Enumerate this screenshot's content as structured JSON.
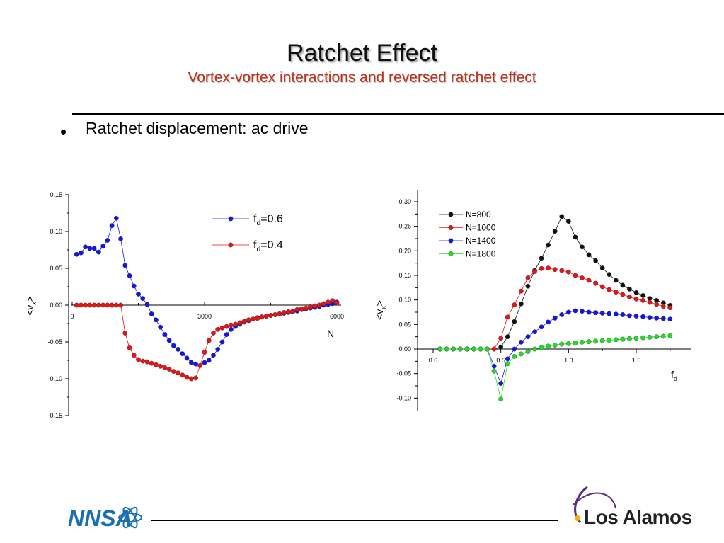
{
  "slide": {
    "title": "Ratchet Effect",
    "subtitle": "Vortex-vortex interactions and reversed ratchet effect",
    "bullet": "Ratchet displacement: ac drive"
  },
  "logos": {
    "left": "NNSA",
    "right": "Los Alamos"
  },
  "colors": {
    "title_text": "#111111",
    "subtitle_text": "#c0301a",
    "blue": "#1414e6",
    "red": "#e61414",
    "black": "#111111",
    "green": "#22dd22"
  },
  "chart_data": [
    {
      "type": "line",
      "xlabel": "N",
      "ylabel": "<v_x>",
      "xlim": [
        0,
        6000
      ],
      "ylim": [
        -0.15,
        0.15
      ],
      "xticks": [
        0,
        3000,
        6000
      ],
      "yticks": [
        0.15,
        0.1,
        0.05,
        0.0,
        -0.05,
        -0.1,
        -0.15
      ],
      "ytick_labels": [
        "0.15",
        "0.10",
        "0.05",
        "0.00",
        "-0.05",
        "-0.10",
        "-0.15"
      ],
      "legend_position": "top-right",
      "series": [
        {
          "name": "f_d=0.6",
          "name_main": "f",
          "name_sub": "d",
          "name_suffix": "=0.6",
          "color": "#1414e6",
          "x": [
            100,
            200,
            300,
            400,
            500,
            600,
            700,
            800,
            900,
            1000,
            1100,
            1200,
            1300,
            1400,
            1500,
            1600,
            1700,
            1800,
            1900,
            2000,
            2100,
            2200,
            2300,
            2400,
            2500,
            2600,
            2700,
            2800,
            2900,
            3000,
            3100,
            3200,
            3300,
            3400,
            3500,
            3600,
            3700,
            3800,
            3900,
            4000,
            4100,
            4200,
            4300,
            4400,
            4500,
            4600,
            4700,
            4800,
            4900,
            5000,
            5100,
            5200,
            5300,
            5400,
            5500,
            5600,
            5700,
            5800,
            5900,
            6000
          ],
          "y": [
            0.069,
            0.071,
            0.079,
            0.077,
            0.077,
            0.072,
            0.08,
            0.088,
            0.108,
            0.118,
            0.09,
            0.054,
            0.04,
            0.026,
            0.015,
            0.009,
            0.001,
            -0.012,
            -0.02,
            -0.03,
            -0.04,
            -0.048,
            -0.055,
            -0.06,
            -0.066,
            -0.072,
            -0.078,
            -0.08,
            -0.082,
            -0.078,
            -0.075,
            -0.068,
            -0.06,
            -0.05,
            -0.04,
            -0.033,
            -0.029,
            -0.026,
            -0.023,
            -0.021,
            -0.019,
            -0.017,
            -0.016,
            -0.015,
            -0.014,
            -0.013,
            -0.012,
            -0.011,
            -0.01,
            -0.009,
            -0.008,
            -0.006,
            -0.005,
            -0.004,
            -0.003,
            -0.002,
            0.0,
            0.001,
            0.002,
            0.004
          ]
        },
        {
          "name": "f_d=0.4",
          "name_main": "f",
          "name_sub": "d",
          "name_suffix": "=0.4",
          "color": "#e61414",
          "x": [
            100,
            200,
            300,
            400,
            500,
            600,
            700,
            800,
            900,
            1000,
            1100,
            1200,
            1300,
            1400,
            1500,
            1600,
            1700,
            1800,
            1900,
            2000,
            2100,
            2200,
            2300,
            2400,
            2500,
            2600,
            2700,
            2800,
            2900,
            3000,
            3100,
            3200,
            3300,
            3400,
            3500,
            3600,
            3700,
            3800,
            3900,
            4000,
            4100,
            4200,
            4300,
            4400,
            4500,
            4600,
            4700,
            4800,
            4900,
            5000,
            5100,
            5200,
            5300,
            5400,
            5500,
            5600,
            5700,
            5800,
            5900,
            6000
          ],
          "y": [
            0,
            0,
            0,
            0,
            0,
            0,
            0,
            0,
            0,
            0,
            0,
            -0.038,
            -0.058,
            -0.068,
            -0.074,
            -0.076,
            -0.077,
            -0.079,
            -0.081,
            -0.083,
            -0.085,
            -0.087,
            -0.09,
            -0.092,
            -0.095,
            -0.098,
            -0.1,
            -0.099,
            -0.082,
            -0.064,
            -0.048,
            -0.038,
            -0.033,
            -0.031,
            -0.029,
            -0.027,
            -0.026,
            -0.024,
            -0.022,
            -0.02,
            -0.019,
            -0.018,
            -0.016,
            -0.015,
            -0.014,
            -0.013,
            -0.012,
            -0.01,
            -0.009,
            -0.008,
            -0.006,
            -0.005,
            -0.004,
            -0.002,
            -0.001,
            0.0,
            0.002,
            0.004,
            0.006,
            0.003
          ]
        }
      ]
    },
    {
      "type": "line",
      "xlabel": "f_d",
      "ylabel": "<v_x>",
      "xlim": [
        -0.05,
        1.85
      ],
      "ylim": [
        -0.12,
        0.32
      ],
      "xticks": [
        0.0,
        0.5,
        1.0,
        1.5
      ],
      "xtick_labels": [
        "0.0",
        "0.5",
        "1.0",
        "1.5"
      ],
      "yticks": [
        0.3,
        0.25,
        0.2,
        0.15,
        0.1,
        0.05,
        0.0,
        -0.05,
        -0.1
      ],
      "ytick_labels": [
        "0.30",
        "0.25",
        "0.20",
        "0.15",
        "0.10",
        "0.05",
        "0.00",
        "-0.05",
        "-0.10"
      ],
      "legend_position": "top-left",
      "series": [
        {
          "name": "N=800",
          "color": "#111111",
          "x": [
            0.05,
            0.1,
            0.15,
            0.2,
            0.25,
            0.3,
            0.35,
            0.4,
            0.45,
            0.5,
            0.55,
            0.6,
            0.65,
            0.7,
            0.75,
            0.8,
            0.85,
            0.9,
            0.95,
            1.0,
            1.05,
            1.1,
            1.15,
            1.2,
            1.25,
            1.3,
            1.35,
            1.4,
            1.45,
            1.5,
            1.55,
            1.6,
            1.65,
            1.7,
            1.75
          ],
          "y": [
            0,
            0,
            0,
            0,
            0,
            0,
            0,
            0,
            0,
            0.004,
            0.025,
            0.056,
            0.092,
            0.128,
            0.16,
            0.185,
            0.212,
            0.24,
            0.27,
            0.26,
            0.228,
            0.208,
            0.192,
            0.18,
            0.165,
            0.152,
            0.14,
            0.13,
            0.122,
            0.115,
            0.109,
            0.103,
            0.099,
            0.094,
            0.089
          ]
        },
        {
          "name": "N=1000",
          "color": "#e61414",
          "x": [
            0.05,
            0.1,
            0.15,
            0.2,
            0.25,
            0.3,
            0.35,
            0.4,
            0.45,
            0.5,
            0.55,
            0.6,
            0.65,
            0.7,
            0.75,
            0.8,
            0.85,
            0.9,
            0.95,
            1.0,
            1.05,
            1.1,
            1.15,
            1.2,
            1.25,
            1.3,
            1.35,
            1.4,
            1.45,
            1.5,
            1.55,
            1.6,
            1.65,
            1.7,
            1.75
          ],
          "y": [
            0,
            0,
            0,
            0,
            0,
            0,
            0,
            0,
            0,
            0.022,
            0.065,
            0.09,
            0.118,
            0.145,
            0.158,
            0.164,
            0.165,
            0.162,
            0.16,
            0.157,
            0.15,
            0.145,
            0.14,
            0.134,
            0.127,
            0.121,
            0.116,
            0.111,
            0.106,
            0.102,
            0.099,
            0.095,
            0.091,
            0.087,
            0.084
          ]
        },
        {
          "name": "N=1400",
          "color": "#1414e6",
          "x": [
            0.05,
            0.1,
            0.15,
            0.2,
            0.25,
            0.3,
            0.35,
            0.4,
            0.45,
            0.5,
            0.55,
            0.6,
            0.65,
            0.7,
            0.75,
            0.8,
            0.85,
            0.9,
            0.95,
            1.0,
            1.05,
            1.1,
            1.15,
            1.2,
            1.25,
            1.3,
            1.35,
            1.4,
            1.45,
            1.5,
            1.55,
            1.6,
            1.65,
            1.7,
            1.75
          ],
          "y": [
            0,
            0,
            0,
            0,
            0,
            0,
            0,
            0,
            -0.035,
            -0.07,
            -0.02,
            0.0,
            0.014,
            0.025,
            0.035,
            0.045,
            0.055,
            0.063,
            0.07,
            0.075,
            0.078,
            0.077,
            0.075,
            0.074,
            0.073,
            0.072,
            0.071,
            0.07,
            0.068,
            0.067,
            0.066,
            0.064,
            0.063,
            0.062,
            0.061
          ]
        },
        {
          "name": "N=1800",
          "color": "#22dd22",
          "x": [
            0.05,
            0.1,
            0.15,
            0.2,
            0.25,
            0.3,
            0.35,
            0.4,
            0.45,
            0.5,
            0.55,
            0.6,
            0.65,
            0.7,
            0.75,
            0.8,
            0.85,
            0.9,
            0.95,
            1.0,
            1.05,
            1.1,
            1.15,
            1.2,
            1.25,
            1.3,
            1.35,
            1.4,
            1.45,
            1.5,
            1.55,
            1.6,
            1.65,
            1.7,
            1.75
          ],
          "y": [
            0,
            0,
            0,
            0,
            0,
            0,
            0,
            0,
            -0.045,
            -0.102,
            -0.03,
            -0.015,
            -0.01,
            -0.005,
            0.0,
            0.003,
            0.006,
            0.008,
            0.01,
            0.011,
            0.012,
            0.014,
            0.015,
            0.016,
            0.017,
            0.018,
            0.019,
            0.02,
            0.021,
            0.022,
            0.023,
            0.024,
            0.025,
            0.026,
            0.027
          ]
        }
      ]
    }
  ]
}
